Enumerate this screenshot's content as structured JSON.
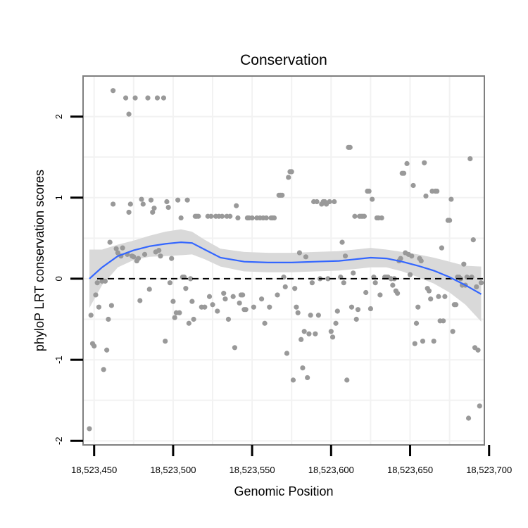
{
  "chart_data": {
    "type": "scatter",
    "title": "Conservation",
    "xlabel": "Genomic Position",
    "ylabel": "phyloP LRT conservation scores",
    "xlim": [
      18523443,
      18523697
    ],
    "ylim": [
      -2.05,
      2.5
    ],
    "x_ticks": [
      18523450,
      18523500,
      18523550,
      18523600,
      18523650,
      18523700
    ],
    "x_tick_labels": [
      "18,523,450",
      "18,523,500",
      "18,523,550",
      "18,523,600",
      "18,523,650",
      "18,523,700"
    ],
    "y_ticks": [
      -2,
      -1,
      0,
      1,
      2
    ],
    "y_tick_labels": [
      "-2",
      "-1",
      "0",
      "1",
      "2"
    ],
    "grid": true,
    "reference_line": {
      "y": 0,
      "style": "dashed",
      "color": "#000000"
    },
    "points_color": "#999999",
    "smooth_color": "#3366FF",
    "band_color": "#D9D9D9",
    "points": [
      [
        18523447,
        -1.85
      ],
      [
        18523448,
        -0.45
      ],
      [
        18523449,
        -0.8
      ],
      [
        18523450,
        -0.83
      ],
      [
        18523451,
        -0.2
      ],
      [
        18523452,
        -0.05
      ],
      [
        18523453,
        -0.35
      ],
      [
        18523455,
        -0.03
      ],
      [
        18523456,
        -1.12
      ],
      [
        18523457,
        -0.03
      ],
      [
        18523458,
        -0.88
      ],
      [
        18523459,
        -0.5
      ],
      [
        18523460,
        0.45
      ],
      [
        18523461,
        -0.33
      ],
      [
        18523462,
        2.32
      ],
      [
        18523462,
        0.92
      ],
      [
        18523464,
        0.37
      ],
      [
        18523465,
        0.32
      ],
      [
        18523467,
        0.28
      ],
      [
        18523468,
        0.38
      ],
      [
        18523470,
        2.23
      ],
      [
        18523471,
        0.3
      ],
      [
        18523472,
        0.82
      ],
      [
        18523472,
        2.03
      ],
      [
        18523473,
        0.92
      ],
      [
        18523474,
        0.28
      ],
      [
        18523475,
        0.27
      ],
      [
        18523476,
        2.23
      ],
      [
        18523477,
        0.22
      ],
      [
        18523478,
        0.25
      ],
      [
        18523479,
        -0.27
      ],
      [
        18523480,
        0.98
      ],
      [
        18523481,
        0.92
      ],
      [
        18523482,
        0.3
      ],
      [
        18523484,
        2.23
      ],
      [
        18523485,
        -0.13
      ],
      [
        18523486,
        0.97
      ],
      [
        18523487,
        0.82
      ],
      [
        18523488,
        0.87
      ],
      [
        18523489,
        0.33
      ],
      [
        18523490,
        2.23
      ],
      [
        18523491,
        0.35
      ],
      [
        18523492,
        0.28
      ],
      [
        18523494,
        2.23
      ],
      [
        18523495,
        -0.77
      ],
      [
        18523496,
        0.95
      ],
      [
        18523497,
        0.88
      ],
      [
        18523498,
        -0.05
      ],
      [
        18523499,
        0.25
      ],
      [
        18523500,
        -0.28
      ],
      [
        18523501,
        -0.48
      ],
      [
        18523502,
        -0.42
      ],
      [
        18523503,
        0.97
      ],
      [
        18523504,
        -0.42
      ],
      [
        18523505,
        0.75
      ],
      [
        18523506,
        0.02
      ],
      [
        18523507,
        0.02
      ],
      [
        18523508,
        -0.12
      ],
      [
        18523509,
        0.97
      ],
      [
        18523510,
        -0.55
      ],
      [
        18523511,
        0.0
      ],
      [
        18523512,
        -0.28
      ],
      [
        18523513,
        -0.5
      ],
      [
        18523514,
        0.77
      ],
      [
        18523515,
        0.77
      ],
      [
        18523516,
        0.77
      ],
      [
        18523518,
        -0.35
      ],
      [
        18523520,
        -0.35
      ],
      [
        18523522,
        0.77
      ],
      [
        18523523,
        -0.22
      ],
      [
        18523524,
        0.77
      ],
      [
        18523525,
        -0.32
      ],
      [
        18523527,
        0.77
      ],
      [
        18523528,
        -0.4
      ],
      [
        18523529,
        0.77
      ],
      [
        18523531,
        0.77
      ],
      [
        18523532,
        -0.18
      ],
      [
        18523533,
        -0.25
      ],
      [
        18523534,
        0.77
      ],
      [
        18523535,
        -0.5
      ],
      [
        18523536,
        0.77
      ],
      [
        18523538,
        -0.22
      ],
      [
        18523539,
        -0.85
      ],
      [
        18523540,
        0.9
      ],
      [
        18523541,
        0.75
      ],
      [
        18523542,
        -0.3
      ],
      [
        18523543,
        -0.2
      ],
      [
        18523544,
        -0.2
      ],
      [
        18523545,
        -0.38
      ],
      [
        18523546,
        -0.38
      ],
      [
        18523547,
        0.75
      ],
      [
        18523548,
        0.75
      ],
      [
        18523550,
        0.75
      ],
      [
        18523551,
        -0.35
      ],
      [
        18523553,
        0.75
      ],
      [
        18523555,
        0.75
      ],
      [
        18523556,
        -0.25
      ],
      [
        18523557,
        0.75
      ],
      [
        18523558,
        -0.55
      ],
      [
        18523559,
        0.75
      ],
      [
        18523561,
        -0.35
      ],
      [
        18523562,
        0.75
      ],
      [
        18523563,
        0.75
      ],
      [
        18523564,
        0.75
      ],
      [
        18523566,
        -0.2
      ],
      [
        18523567,
        1.03
      ],
      [
        18523568,
        1.03
      ],
      [
        18523569,
        1.03
      ],
      [
        18523570,
        0.02
      ],
      [
        18523571,
        -0.1
      ],
      [
        18523572,
        -0.92
      ],
      [
        18523573,
        1.25
      ],
      [
        18523574,
        1.32
      ],
      [
        18523575,
        1.32
      ],
      [
        18523576,
        -1.25
      ],
      [
        18523577,
        -0.12
      ],
      [
        18523578,
        -0.35
      ],
      [
        18523579,
        -0.42
      ],
      [
        18523580,
        0.32
      ],
      [
        18523581,
        -0.75
      ],
      [
        18523582,
        -1.1
      ],
      [
        18523583,
        -0.65
      ],
      [
        18523584,
        0.27
      ],
      [
        18523585,
        -1.22
      ],
      [
        18523586,
        -0.68
      ],
      [
        18523587,
        -0.45
      ],
      [
        18523588,
        -0.05
      ],
      [
        18523589,
        0.95
      ],
      [
        18523590,
        -0.68
      ],
      [
        18523591,
        0.95
      ],
      [
        18523592,
        -0.45
      ],
      [
        18523593,
        0.0
      ],
      [
        18523594,
        0.92
      ],
      [
        18523595,
        0.95
      ],
      [
        18523596,
        0.95
      ],
      [
        18523597,
        0.92
      ],
      [
        18523598,
        0.0
      ],
      [
        18523599,
        0.95
      ],
      [
        18523600,
        -0.65
      ],
      [
        18523601,
        -0.72
      ],
      [
        18523602,
        0.95
      ],
      [
        18523603,
        -0.55
      ],
      [
        18523604,
        -0.4
      ],
      [
        18523606,
        0.02
      ],
      [
        18523607,
        0.45
      ],
      [
        18523608,
        -0.05
      ],
      [
        18523609,
        0.28
      ],
      [
        18523610,
        -1.25
      ],
      [
        18523611,
        1.62
      ],
      [
        18523612,
        1.62
      ],
      [
        18523613,
        -0.35
      ],
      [
        18523614,
        0.07
      ],
      [
        18523615,
        0.77
      ],
      [
        18523616,
        -0.5
      ],
      [
        18523617,
        -0.38
      ],
      [
        18523618,
        0.77
      ],
      [
        18523619,
        0.77
      ],
      [
        18523620,
        0.77
      ],
      [
        18523621,
        0.77
      ],
      [
        18523622,
        -0.17
      ],
      [
        18523623,
        1.08
      ],
      [
        18523624,
        1.08
      ],
      [
        18523625,
        -0.37
      ],
      [
        18523626,
        0.98
      ],
      [
        18523627,
        0.02
      ],
      [
        18523628,
        -0.05
      ],
      [
        18523629,
        0.75
      ],
      [
        18523630,
        0.75
      ],
      [
        18523631,
        -0.2
      ],
      [
        18523632,
        0.75
      ],
      [
        18523634,
        0.02
      ],
      [
        18523635,
        0.02
      ],
      [
        18523636,
        0.02
      ],
      [
        18523638,
        0.0
      ],
      [
        18523639,
        -0.08
      ],
      [
        18523640,
        0.0
      ],
      [
        18523641,
        -0.15
      ],
      [
        18523642,
        -0.18
      ],
      [
        18523643,
        0.22
      ],
      [
        18523644,
        0.25
      ],
      [
        18523645,
        1.3
      ],
      [
        18523646,
        1.3
      ],
      [
        18523647,
        0.32
      ],
      [
        18523648,
        1.42
      ],
      [
        18523649,
        0.3
      ],
      [
        18523650,
        0.05
      ],
      [
        18523651,
        0.28
      ],
      [
        18523652,
        1.15
      ],
      [
        18523653,
        -0.8
      ],
      [
        18523654,
        -0.55
      ],
      [
        18523655,
        -0.35
      ],
      [
        18523656,
        0.25
      ],
      [
        18523657,
        0.22
      ],
      [
        18523658,
        -0.77
      ],
      [
        18523659,
        1.43
      ],
      [
        18523660,
        1.02
      ],
      [
        18523661,
        -0.12
      ],
      [
        18523662,
        -0.15
      ],
      [
        18523663,
        -0.25
      ],
      [
        18523664,
        1.08
      ],
      [
        18523665,
        -0.77
      ],
      [
        18523666,
        1.08
      ],
      [
        18523667,
        1.08
      ],
      [
        18523668,
        -0.22
      ],
      [
        18523669,
        -0.52
      ],
      [
        18523670,
        0.38
      ],
      [
        18523671,
        -0.52
      ],
      [
        18523672,
        -0.22
      ],
      [
        18523674,
        0.72
      ],
      [
        18523675,
        0.72
      ],
      [
        18523676,
        0.98
      ],
      [
        18523677,
        -0.65
      ],
      [
        18523678,
        -0.32
      ],
      [
        18523679,
        -0.32
      ],
      [
        18523680,
        0.02
      ],
      [
        18523681,
        0.02
      ],
      [
        18523682,
        0.0
      ],
      [
        18523683,
        -0.08
      ],
      [
        18523684,
        0.18
      ],
      [
        18523685,
        -0.08
      ],
      [
        18523686,
        0.02
      ],
      [
        18523687,
        -1.72
      ],
      [
        18523688,
        1.48
      ],
      [
        18523689,
        0.02
      ],
      [
        18523690,
        0.48
      ],
      [
        18523691,
        -0.85
      ],
      [
        18523692,
        -0.1
      ],
      [
        18523693,
        -0.88
      ],
      [
        18523694,
        -1.57
      ],
      [
        18523695,
        -0.05
      ]
    ],
    "smooth_x": [
      18523447,
      18523455,
      18523465,
      18523475,
      18523485,
      18523495,
      18523505,
      18523512,
      18523520,
      18523530,
      18523545,
      18523560,
      18523575,
      18523590,
      18523605,
      18523615,
      18523625,
      18523635,
      18523645,
      18523655,
      18523665,
      18523675,
      18523685,
      18523695
    ],
    "smooth_y": [
      0.0,
      0.14,
      0.28,
      0.35,
      0.4,
      0.43,
      0.45,
      0.44,
      0.36,
      0.26,
      0.21,
      0.2,
      0.2,
      0.21,
      0.22,
      0.24,
      0.26,
      0.25,
      0.21,
      0.16,
      0.1,
      0.02,
      -0.08,
      -0.19
    ],
    "band_half_width": [
      0.36,
      0.22,
      0.14,
      0.12,
      0.13,
      0.15,
      0.16,
      0.14,
      0.12,
      0.11,
      0.12,
      0.12,
      0.12,
      0.12,
      0.12,
      0.12,
      0.12,
      0.11,
      0.12,
      0.14,
      0.16,
      0.19,
      0.24,
      0.34
    ]
  }
}
